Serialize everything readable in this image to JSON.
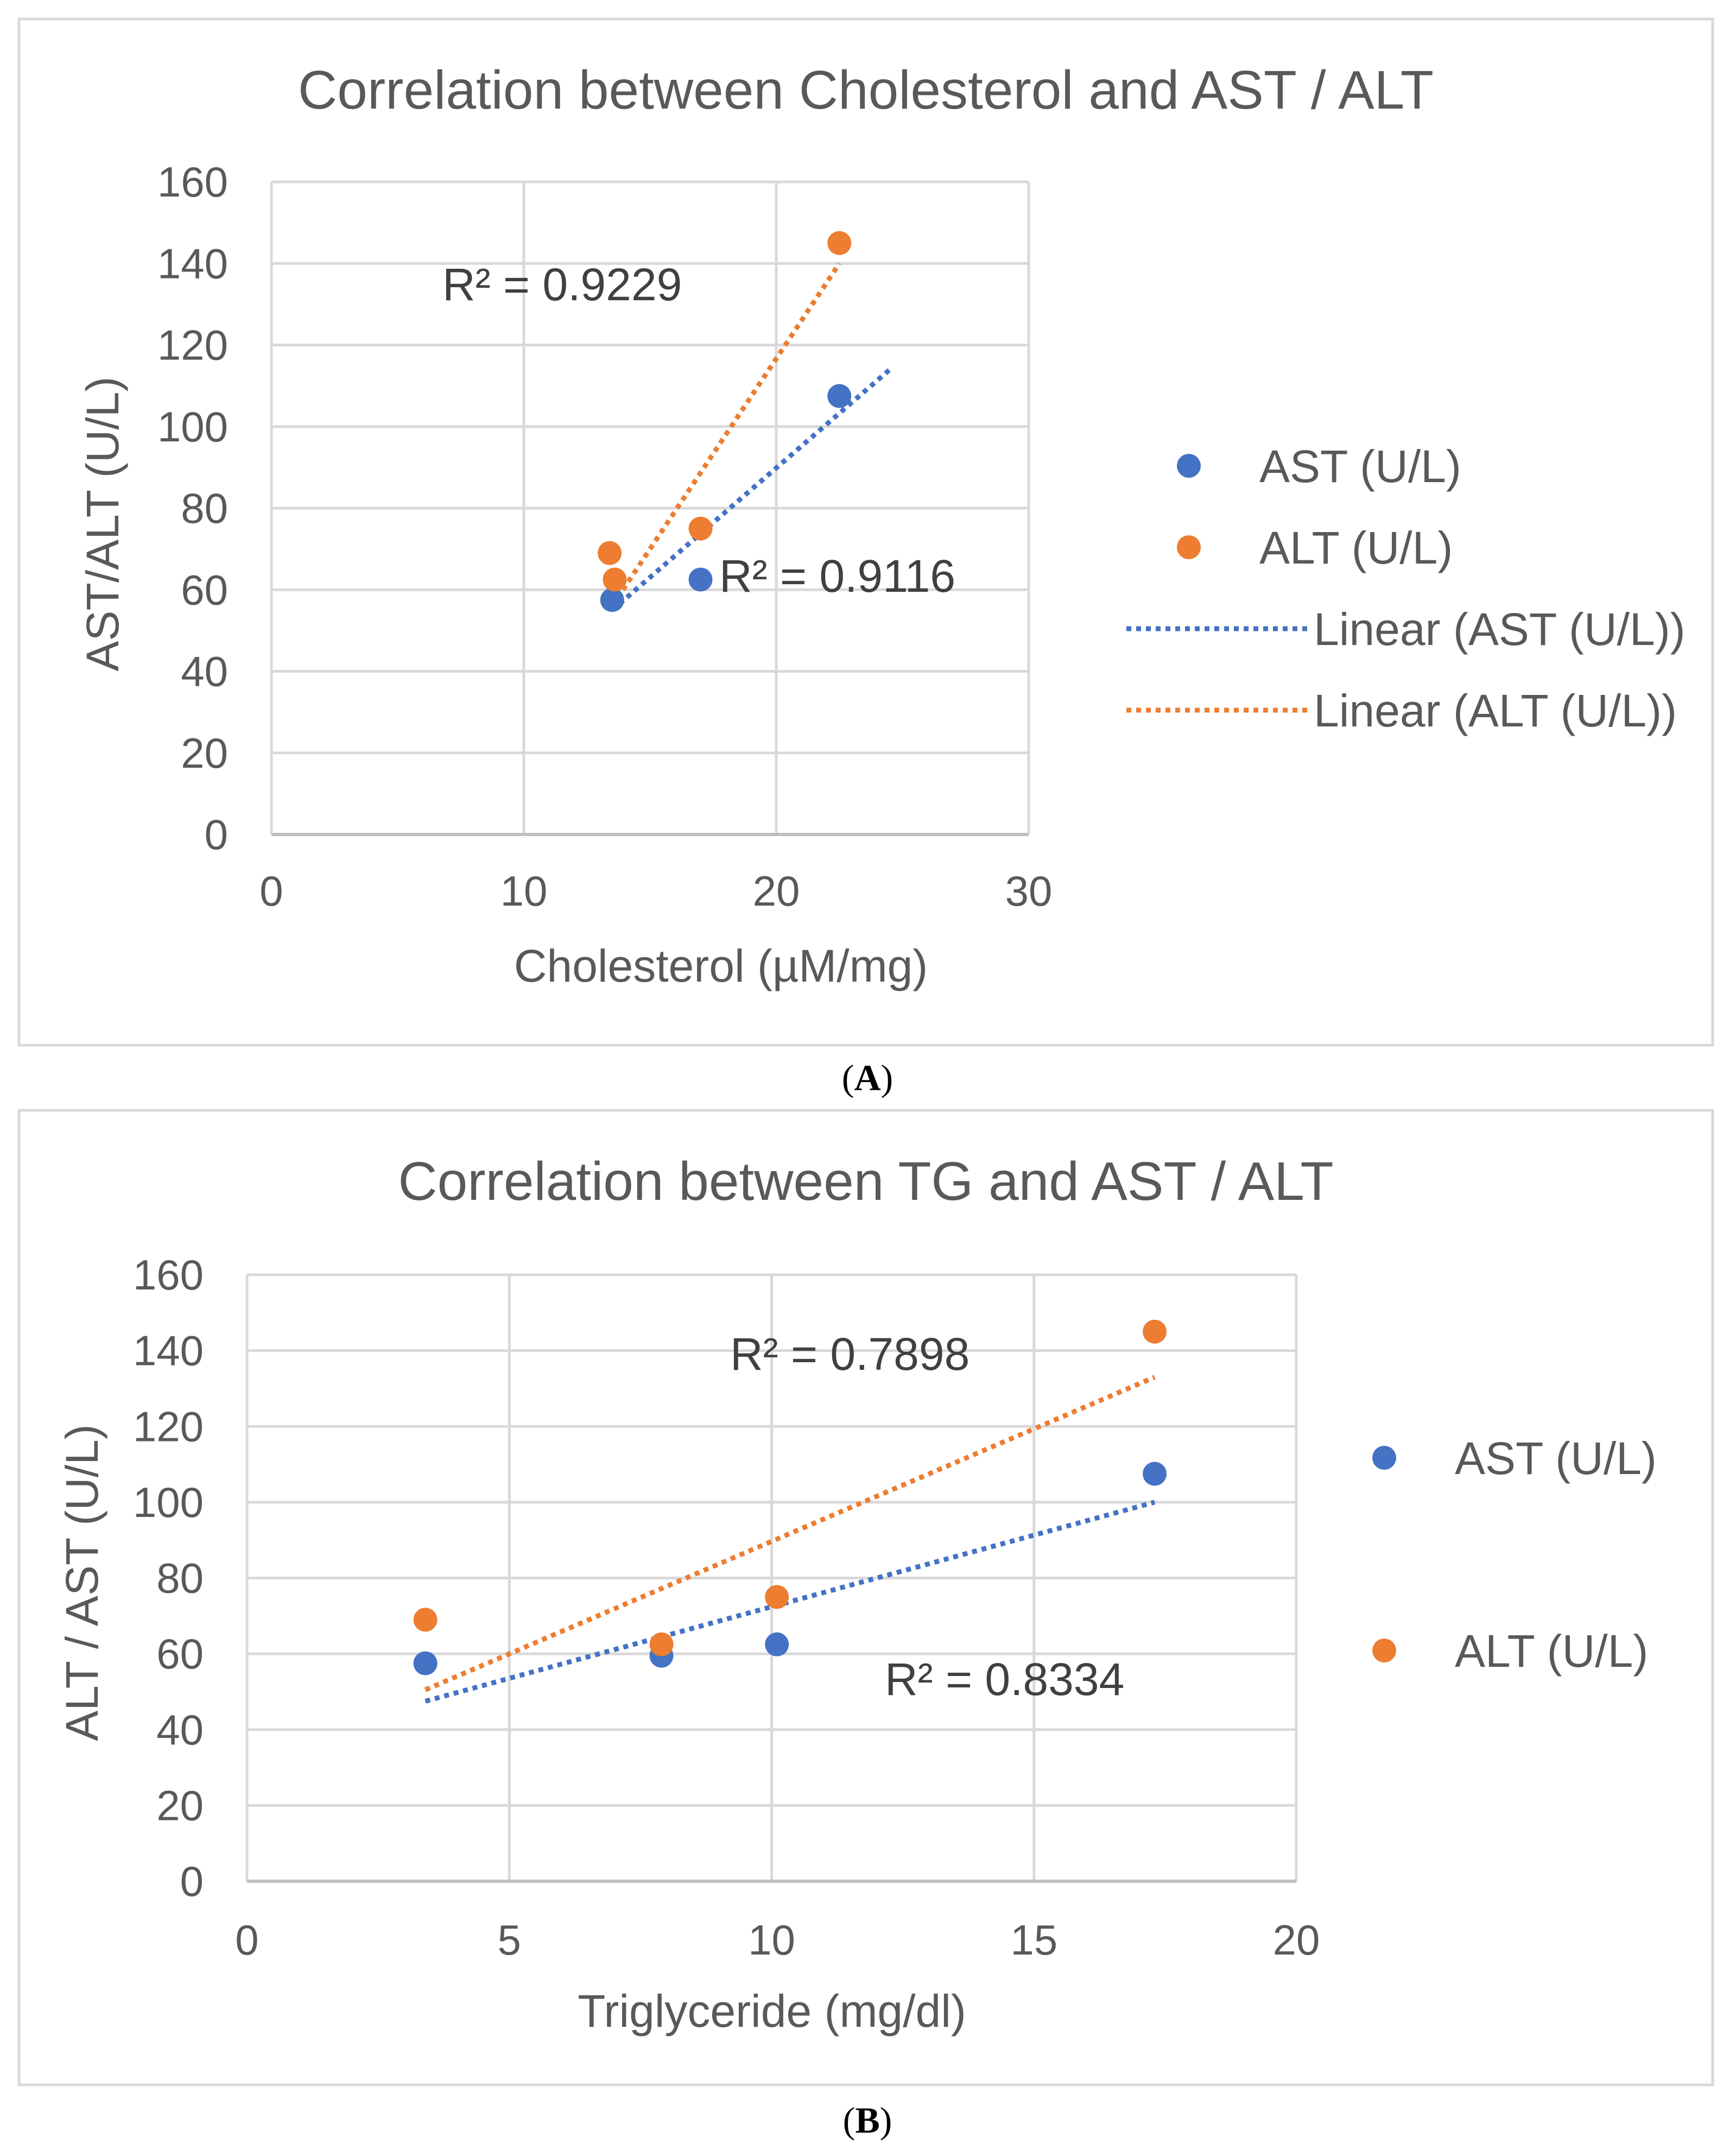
{
  "colors": {
    "ast": "#4472C4",
    "alt": "#ED7D31",
    "grid": "#d9d9d9",
    "frame": "#d9d9d9",
    "text": "#595959"
  },
  "panels": {
    "a": {
      "label": "A"
    },
    "b": {
      "label": "B"
    }
  },
  "chart_data": [
    {
      "type": "scatter",
      "title": "Correlation between Cholesterol and AST / ALT",
      "xlabel": "Cholesterol (µM/mg)",
      "ylabel": "AST/ALT (U/L)",
      "xlim": [
        0,
        30
      ],
      "ylim": [
        0,
        160
      ],
      "xticks": [
        "0",
        "10",
        "20",
        "30"
      ],
      "yticks": [
        "0",
        "20",
        "40",
        "60",
        "80",
        "100",
        "120",
        "140",
        "160"
      ],
      "grid": true,
      "legend_position": "right",
      "legend": [
        "AST (U/L)",
        "ALT (U/L)",
        "Linear (AST (U/L))",
        "Linear (ALT (U/L))"
      ],
      "series": [
        {
          "name": "AST (U/L)",
          "color": "#4472C4",
          "x": [
            13.5,
            13.5,
            17.0,
            22.5
          ],
          "y": [
            57.5,
            57.5,
            62.5,
            107.5
          ]
        },
        {
          "name": "ALT (U/L)",
          "color": "#ED7D31",
          "x": [
            13.4,
            13.6,
            17.0,
            22.5
          ],
          "y": [
            69.0,
            62.5,
            75.0,
            145.0
          ]
        }
      ],
      "trendlines": [
        {
          "name": "Linear (AST (U/L))",
          "series": "AST (U/L)",
          "color": "#4472C4",
          "x": [
            13.5,
            24.5
          ],
          "y": [
            55.0,
            114.0
          ]
        },
        {
          "name": "Linear (ALT (U/L))",
          "series": "ALT (U/L)",
          "color": "#ED7D31",
          "x": [
            13.5,
            22.5
          ],
          "y": [
            56.0,
            140.0
          ]
        }
      ],
      "annotations": [
        "R² = 0.9229",
        "R² = 0.9116"
      ]
    },
    {
      "type": "scatter",
      "title": "Correlation between TG and AST / ALT",
      "xlabel": "Triglyceride (mg/dl)",
      "ylabel": "ALT / AST (U/L)",
      "xlim": [
        0,
        20
      ],
      "ylim": [
        0,
        160
      ],
      "xticks": [
        "0",
        "5",
        "10",
        "15",
        "20"
      ],
      "yticks": [
        "0",
        "20",
        "40",
        "60",
        "80",
        "100",
        "120",
        "140",
        "160"
      ],
      "grid": true,
      "legend_position": "right",
      "legend": [
        "AST (U/L)",
        "ALT (U/L)"
      ],
      "series": [
        {
          "name": "AST (U/L)",
          "color": "#4472C4",
          "x": [
            3.4,
            7.9,
            10.1,
            17.3
          ],
          "y": [
            57.5,
            59.5,
            62.5,
            107.5
          ]
        },
        {
          "name": "ALT (U/L)",
          "color": "#ED7D31",
          "x": [
            3.4,
            7.9,
            10.1,
            17.3
          ],
          "y": [
            69.0,
            62.5,
            75.0,
            145.0
          ]
        }
      ],
      "trendlines": [
        {
          "name": "Linear (AST (U/L))",
          "series": "AST (U/L)",
          "color": "#4472C4",
          "x": [
            3.4,
            17.3
          ],
          "y": [
            47.5,
            100.0
          ]
        },
        {
          "name": "Linear (ALT (U/L))",
          "series": "ALT (U/L)",
          "color": "#ED7D31",
          "x": [
            3.4,
            17.3
          ],
          "y": [
            50.5,
            133.0
          ]
        }
      ],
      "annotations": [
        "R² = 0.7898",
        "R² = 0.8334"
      ]
    }
  ]
}
